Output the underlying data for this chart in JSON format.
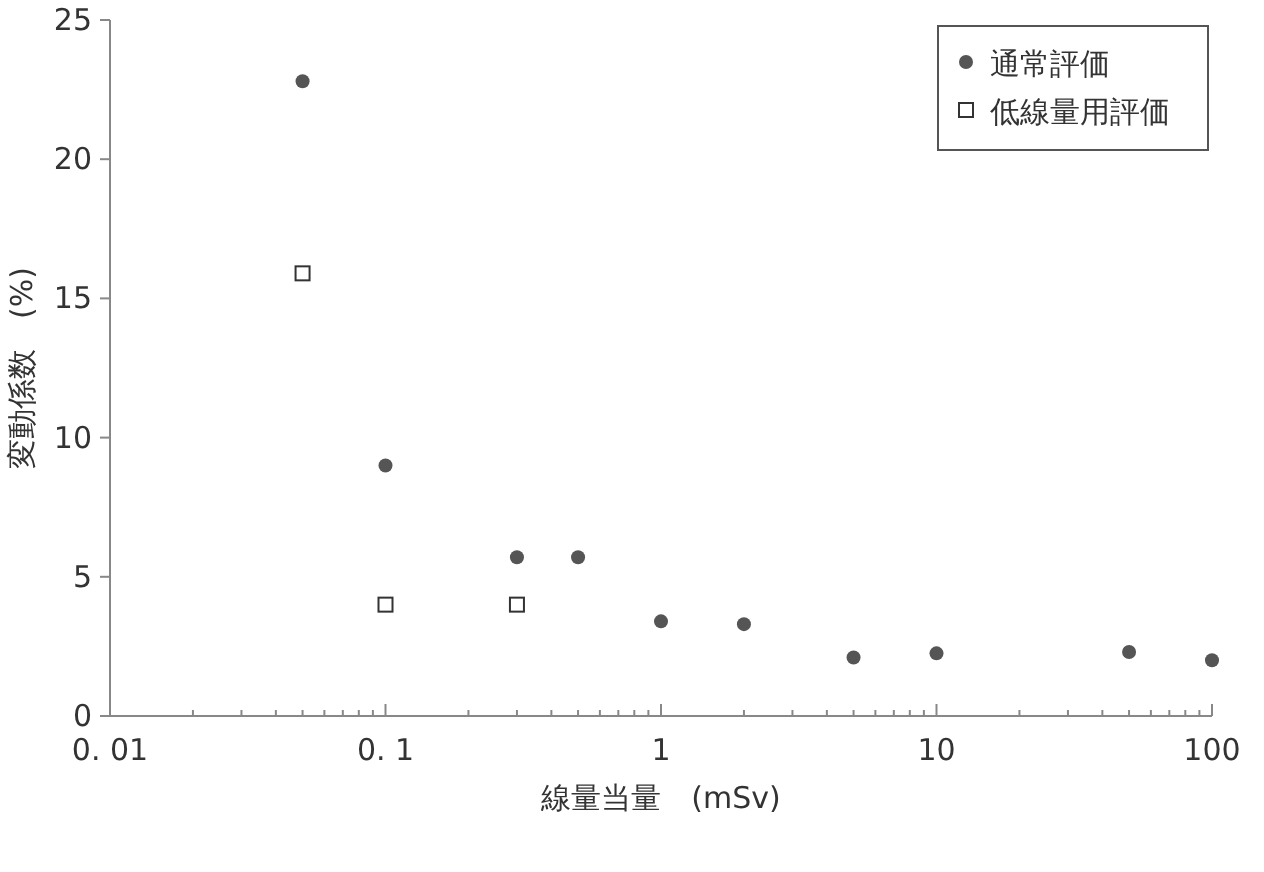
{
  "chart_data": {
    "type": "scatter",
    "xlabel": "線量当量　(mSv)",
    "ylabel": "変動係数　(%)",
    "log": "x",
    "legend": "top right",
    "grid": false,
    "xlim": [
      0.01,
      100
    ],
    "xticks": [
      {
        "value": 0.01,
        "label": "0. 01"
      },
      {
        "value": 0.1,
        "label": "0. 1"
      },
      1,
      10,
      100
    ],
    "ylim": [
      0,
      25
    ],
    "yticks": [
      0,
      5,
      10,
      15,
      20,
      25
    ],
    "series": [
      {
        "name": "通常評価",
        "color": "#555555",
        "marker": "circle",
        "x": [
          0.05,
          0.1,
          0.3,
          0.5,
          1,
          2,
          5,
          10,
          50,
          100
        ],
        "values": [
          22.8,
          9.0,
          5.7,
          5.7,
          3.4,
          3.3,
          2.1,
          2.25,
          2.3,
          2.0
        ]
      },
      {
        "name": "低線量用評価",
        "color": "#333333",
        "marker": "square",
        "x": [
          0.05,
          0.1,
          0.3
        ],
        "values": [
          15.9,
          4.0,
          4.0
        ]
      }
    ]
  }
}
